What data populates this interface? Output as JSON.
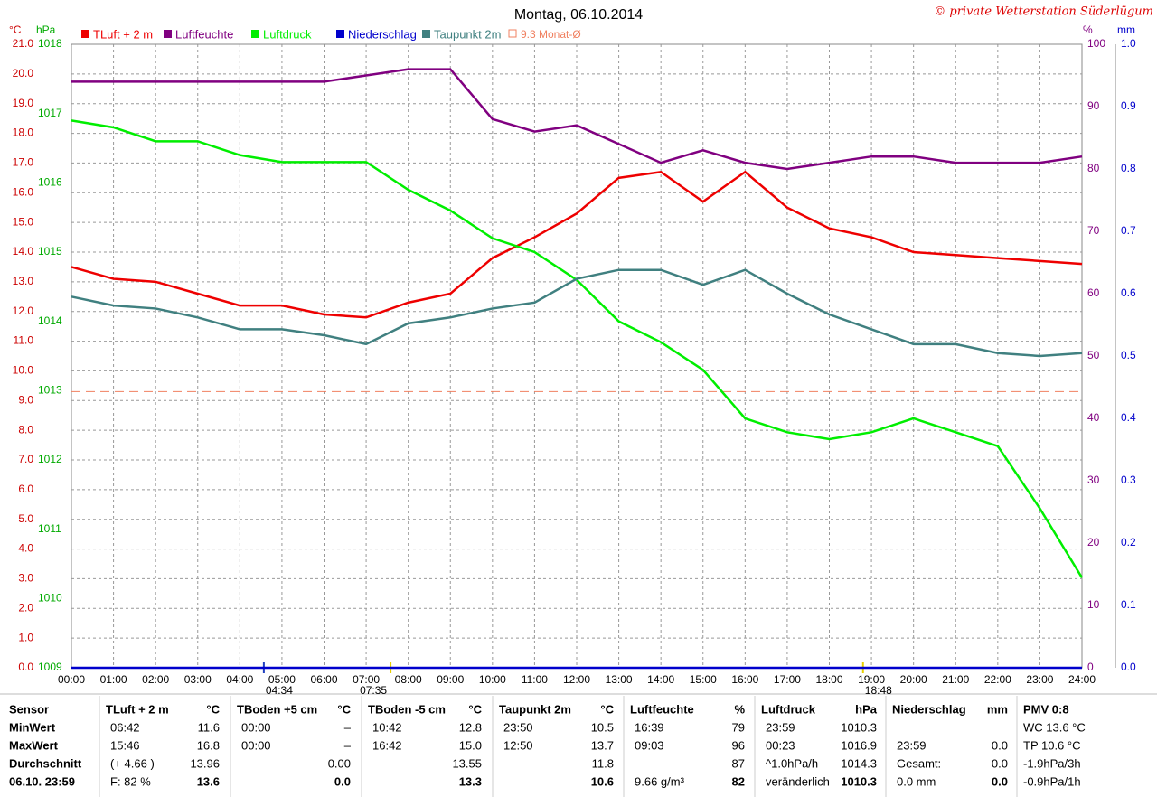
{
  "chart_data": {
    "type": "line",
    "title": "Montag, 06.10.2014",
    "credit": "© private Wetterstation Süderlügum",
    "units": {
      "temp": "°C",
      "hpa": "hPa",
      "pct": "%",
      "mm": "mm"
    },
    "x": [
      0,
      1,
      2,
      3,
      4,
      5,
      6,
      7,
      8,
      9,
      10,
      11,
      12,
      13,
      14,
      15,
      16,
      17,
      18,
      19,
      20,
      21,
      22,
      23,
      24
    ],
    "xlim": [
      0,
      24
    ],
    "xticks": [
      {
        "value": 0,
        "label": "00:00"
      },
      {
        "value": 1,
        "label": "01:00"
      },
      {
        "value": 2,
        "label": "02:00"
      },
      {
        "value": 3,
        "label": "03:00"
      },
      {
        "value": 4,
        "label": "04:00"
      },
      {
        "value": 5,
        "label": "05:00"
      },
      {
        "value": 6,
        "label": "06:00"
      },
      {
        "value": 7,
        "label": "07:00"
      },
      {
        "value": 8,
        "label": "08:00"
      },
      {
        "value": 9,
        "label": "09:00"
      },
      {
        "value": 10,
        "label": "10:00"
      },
      {
        "value": 11,
        "label": "11:00"
      },
      {
        "value": 12,
        "label": "12:00"
      },
      {
        "value": 13,
        "label": "13:00"
      },
      {
        "value": 14,
        "label": "14:00"
      },
      {
        "value": 15,
        "label": "15:00"
      },
      {
        "value": 16,
        "label": "16:00"
      },
      {
        "value": 17,
        "label": "17:00"
      },
      {
        "value": 18,
        "label": "18:00"
      },
      {
        "value": 19,
        "label": "19:00"
      },
      {
        "value": 20,
        "label": "20:00"
      },
      {
        "value": 21,
        "label": "21:00"
      },
      {
        "value": 22,
        "label": "22:00"
      },
      {
        "value": 23,
        "label": "23:00"
      },
      {
        "value": 24,
        "label": "24:00"
      }
    ],
    "ylim": [
      0,
      21
    ],
    "yticks": [
      {
        "value": 0,
        "label": "0.0"
      },
      {
        "value": 1,
        "label": "1.0"
      },
      {
        "value": 2,
        "label": "2.0"
      },
      {
        "value": 3,
        "label": "3.0"
      },
      {
        "value": 4,
        "label": "4.0"
      },
      {
        "value": 5,
        "label": "5.0"
      },
      {
        "value": 6,
        "label": "6.0"
      },
      {
        "value": 7,
        "label": "7.0"
      },
      {
        "value": 8,
        "label": "8.0"
      },
      {
        "value": 9,
        "label": "9.0"
      },
      {
        "value": 10,
        "label": "10.0"
      },
      {
        "value": 11,
        "label": "11.0"
      },
      {
        "value": 12,
        "label": "12.0"
      },
      {
        "value": 13,
        "label": "13.0"
      },
      {
        "value": 14,
        "label": "14.0"
      },
      {
        "value": 15,
        "label": "15.0"
      },
      {
        "value": 16,
        "label": "16.0"
      },
      {
        "value": 17,
        "label": "17.0"
      },
      {
        "value": 18,
        "label": "18.0"
      },
      {
        "value": 19,
        "label": "19.0"
      },
      {
        "value": 20,
        "label": "20.0"
      },
      {
        "value": 21,
        "label": "21.0"
      }
    ],
    "y2lim": [
      1009,
      1018
    ],
    "y2ticks": [
      1009,
      1010,
      1011,
      1012,
      1013,
      1014,
      1015,
      1016,
      1017,
      1018
    ],
    "y3lim": [
      0,
      100
    ],
    "y3ticks": [
      0,
      10,
      20,
      30,
      40,
      50,
      60,
      70,
      80,
      90,
      100
    ],
    "y4lim": [
      0,
      1
    ],
    "y4ticks": [
      {
        "value": 0,
        "label": "0.0"
      },
      0.1,
      0.2,
      0.3,
      0.4,
      0.5,
      0.6,
      0.7,
      0.8,
      0.9,
      {
        "value": 1,
        "label": "1.0"
      }
    ],
    "grid": true,
    "monthly_avg": {
      "value": 9.3,
      "label": "9.3 Monat-Ø",
      "color": "#f08060"
    },
    "sun_markers": [
      {
        "value": 4.57,
        "label": "04:34"
      },
      {
        "value": 7.58,
        "label": "07:35"
      },
      {
        "value": 18.8,
        "label": "18:48"
      }
    ],
    "series": [
      {
        "name": "TLuft + 2 m",
        "color": "#ee0000",
        "axis": "y",
        "values": [
          13.5,
          13.1,
          13.0,
          12.6,
          12.2,
          12.2,
          11.9,
          11.8,
          12.3,
          12.6,
          13.8,
          14.5,
          15.3,
          16.5,
          16.7,
          15.7,
          16.7,
          15.5,
          14.8,
          14.5,
          14.0,
          13.9,
          13.8,
          13.7,
          13.6
        ]
      },
      {
        "name": "Luftfeuchte",
        "color": "#800080",
        "axis": "y3",
        "values": [
          94,
          94,
          94,
          94,
          94,
          94,
          94,
          95,
          96,
          96,
          88,
          86,
          87,
          84,
          81,
          83,
          81,
          80,
          81,
          82,
          82,
          81,
          81,
          81,
          82
        ]
      },
      {
        "name": "Luftdruck",
        "color": "#00ee00",
        "axis": "y2",
        "values": [
          1016.9,
          1016.8,
          1016.6,
          1016.6,
          1016.4,
          1016.3,
          1016.3,
          1016.3,
          1015.9,
          1015.6,
          1015.2,
          1015.0,
          1014.6,
          1014.0,
          1013.7,
          1013.3,
          1012.6,
          1012.4,
          1012.3,
          1012.4,
          1012.6,
          1012.4,
          1012.2,
          1011.3,
          1010.3
        ]
      },
      {
        "name": "Niederschlag",
        "color": "#0000cc",
        "axis": "y4",
        "values": [
          0,
          0,
          0,
          0,
          0,
          0,
          0,
          0,
          0,
          0,
          0,
          0,
          0,
          0,
          0,
          0,
          0,
          0,
          0,
          0,
          0,
          0,
          0,
          0,
          0
        ]
      },
      {
        "name": "Taupunkt 2m",
        "color": "#408080",
        "axis": "y",
        "values": [
          12.5,
          12.2,
          12.1,
          11.8,
          11.4,
          11.4,
          11.2,
          10.9,
          11.6,
          11.8,
          12.1,
          12.3,
          13.1,
          13.4,
          13.4,
          12.9,
          13.4,
          12.6,
          11.9,
          11.4,
          10.9,
          10.9,
          10.6,
          10.5,
          10.6
        ]
      }
    ]
  },
  "table": {
    "header": [
      "Sensor",
      "TLuft + 2 m",
      "°C",
      "TBoden +5 cm",
      "°C",
      "TBoden -5 cm",
      "°C",
      "Taupunkt 2m",
      "°C",
      "Luftfeuchte",
      "%",
      "Luftdruck",
      "hPa",
      "Niederschlag",
      "mm",
      "PMV 0:8"
    ],
    "rows": [
      [
        "MinWert",
        "06:42",
        "11.6",
        "00:00",
        "–",
        "10:42",
        "12.8",
        "23:50",
        "10.5",
        "16:39",
        "79",
        "23:59",
        "1010.3",
        null,
        null,
        "WC 13.6 °C"
      ],
      [
        "MaxWert",
        "15:46",
        "16.8",
        "00:00",
        "–",
        "16:42",
        "15.0",
        "12:50",
        "13.7",
        "09:03",
        "96",
        "00:23",
        "1016.9",
        "23:59",
        "0.0",
        "TP 10.6 °C"
      ],
      [
        "Durchschnitt",
        "(+ 4.66 )",
        "13.96",
        null,
        "0.00",
        null,
        "13.55",
        null,
        "11.8",
        null,
        "87",
        "^1.0hPa/h",
        "1014.3",
        "Gesamt:",
        "0.0",
        "-1.9hPa/3h"
      ],
      [
        "06.10. 23:59",
        "F: 82 %",
        "13.6",
        null,
        "0.0",
        null,
        "13.3",
        null,
        "10.6",
        "9.66 g/m³",
        "82",
        "veränderlich",
        "1010.3",
        "0.0 mm",
        "0.0",
        "-0.9hPa/1h"
      ]
    ]
  }
}
